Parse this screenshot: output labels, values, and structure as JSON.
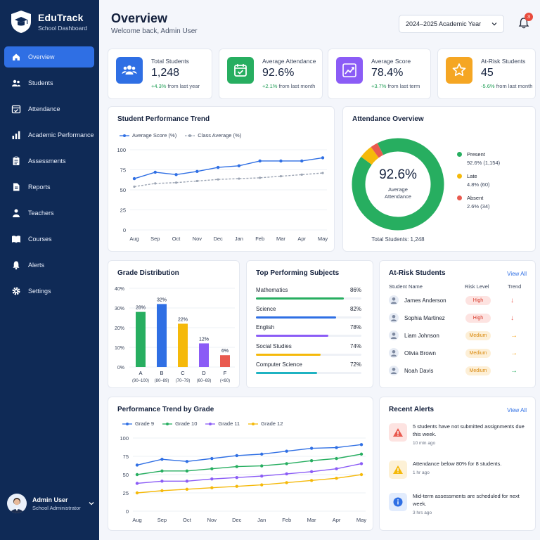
{
  "brand": {
    "title": "EduTrack",
    "subtitle": "School Dashboard"
  },
  "nav": [
    {
      "label": "Overview",
      "icon": "home-icon"
    },
    {
      "label": "Students",
      "icon": "users-icon"
    },
    {
      "label": "Attendance",
      "icon": "calendar-check-icon"
    },
    {
      "label": "Academic Performance",
      "icon": "bar-chart-icon"
    },
    {
      "label": "Assessments",
      "icon": "clipboard-icon"
    },
    {
      "label": "Reports",
      "icon": "document-icon"
    },
    {
      "label": "Teachers",
      "icon": "teacher-icon"
    },
    {
      "label": "Courses",
      "icon": "book-icon"
    },
    {
      "label": "Alerts",
      "icon": "bell-icon"
    },
    {
      "label": "Settings",
      "icon": "gear-icon"
    }
  ],
  "user": {
    "name": "Admin User",
    "role": "School Administrator"
  },
  "header": {
    "title": "Overview",
    "subtitle": "Welcome back, Admin User",
    "year": "2024–2025 Academic Year",
    "notifications": "3"
  },
  "kpis": [
    {
      "label": "Total Students",
      "value": "1,248",
      "change": "+4.3%",
      "period": "from last year",
      "color": "#2f6fe4"
    },
    {
      "label": "Average Attendance",
      "value": "92.6%",
      "change": "+2.1%",
      "period": "from last month",
      "color": "#27ae60"
    },
    {
      "label": "Average Score",
      "value": "78.4%",
      "change": "+3.7%",
      "period": "from last term",
      "color": "#8b5cf6"
    },
    {
      "label": "At-Risk Students",
      "value": "45",
      "change": "-5.6%",
      "period": "from last month",
      "color": "#f5a623"
    }
  ],
  "performance_trend": {
    "title": "Student Performance Trend",
    "chart_data": {
      "type": "line",
      "x": [
        "Aug",
        "Sep",
        "Oct",
        "Nov",
        "Dec",
        "Jan",
        "Feb",
        "Mar",
        "Apr",
        "May"
      ],
      "ylim": [
        0,
        100
      ],
      "yticks": [
        "0",
        "25",
        "50",
        "75",
        "100"
      ],
      "series": [
        {
          "name": "Average Score (%)",
          "values": [
            64,
            72,
            69,
            73,
            78,
            80,
            86,
            86,
            86,
            90
          ],
          "color": "#2f6fe4"
        },
        {
          "name": "Class Average (%)",
          "values": [
            54,
            58,
            59,
            61,
            63,
            64,
            65,
            67,
            69,
            71
          ],
          "color": "#9aa3b2"
        }
      ]
    }
  },
  "attendance": {
    "title": "Attendance Overview",
    "center_value": "92.6%",
    "center_label_1": "Average",
    "center_label_2": "Attendance",
    "total": "Total Students: 1,248",
    "chart_data": {
      "type": "pie",
      "slices": [
        {
          "name": "Present",
          "value": 92.6,
          "detail": "92.6% (1,154)",
          "color": "#27ae60"
        },
        {
          "name": "Late",
          "value": 4.8,
          "detail": "4.8% (60)",
          "color": "#f5b90a"
        },
        {
          "name": "Absent",
          "value": 2.6,
          "detail": "2.6% (34)",
          "color": "#e95a4f"
        }
      ]
    }
  },
  "grades": {
    "title": "Grade Distribution",
    "chart_data": {
      "type": "bar",
      "categories": [
        "A",
        "B",
        "C",
        "D",
        "F"
      ],
      "ranges": [
        "(90–100)",
        "(80–89)",
        "(70–79)",
        "(60–69)",
        "(<60)"
      ],
      "values": [
        28,
        32,
        22,
        12,
        6
      ],
      "labels": [
        "28%",
        "32%",
        "22%",
        "12%",
        "6%"
      ],
      "colors": [
        "#27ae60",
        "#2f6fe4",
        "#f5b90a",
        "#8b5cf6",
        "#e95a4f"
      ],
      "ylim": [
        0,
        40
      ],
      "yticks": [
        "0%",
        "10%",
        "20%",
        "30%",
        "40%"
      ]
    }
  },
  "subjects": {
    "title": "Top Performing Subjects",
    "items": [
      {
        "name": "Mathematics",
        "value": "86%",
        "pct": 86,
        "color": "#27ae60"
      },
      {
        "name": "Science",
        "value": "82%",
        "pct": 82,
        "color": "#2f6fe4"
      },
      {
        "name": "English",
        "value": "78%",
        "pct": 78,
        "color": "#8b5cf6"
      },
      {
        "name": "Social Studies",
        "value": "74%",
        "pct": 74,
        "color": "#f5b90a"
      },
      {
        "name": "Computer Science",
        "value": "72%",
        "pct": 72,
        "color": "#1fb3c2"
      }
    ]
  },
  "at_risk": {
    "title": "At-Risk Students",
    "view_all": "View All",
    "headers": {
      "student": "Student Name",
      "risk": "Risk Level",
      "trend": "Trend"
    },
    "rows": [
      {
        "name": "James Anderson",
        "risk": "High",
        "trend": "↓",
        "trend_color": "#e95a4f"
      },
      {
        "name": "Sophia Martinez",
        "risk": "High",
        "trend": "↓",
        "trend_color": "#e95a4f"
      },
      {
        "name": "Liam Johnson",
        "risk": "Medium",
        "trend": "→",
        "trend_color": "#f5a623"
      },
      {
        "name": "Olivia Brown",
        "risk": "Medium",
        "trend": "→",
        "trend_color": "#f5a623"
      },
      {
        "name": "Noah Davis",
        "risk": "Medium",
        "trend": "→",
        "trend_color": "#27ae60"
      }
    ]
  },
  "grade_trend": {
    "title": "Performance Trend by Grade",
    "chart_data": {
      "type": "line",
      "x": [
        "Aug",
        "Sep",
        "Oct",
        "Nov",
        "Dec",
        "Jan",
        "Feb",
        "Mar",
        "Apr",
        "May"
      ],
      "ylim": [
        0,
        100
      ],
      "yticks": [
        "0",
        "25",
        "50",
        "75",
        "100"
      ],
      "series": [
        {
          "name": "Grade 9",
          "values": [
            63,
            71,
            68,
            72,
            76,
            78,
            82,
            86,
            87,
            91
          ],
          "color": "#2f6fe4"
        },
        {
          "name": "Grade 10",
          "values": [
            50,
            55,
            55,
            58,
            61,
            62,
            65,
            69,
            72,
            78
          ],
          "color": "#27ae60"
        },
        {
          "name": "Grade 11",
          "values": [
            38,
            41,
            41,
            44,
            46,
            48,
            51,
            54,
            58,
            65
          ],
          "color": "#8b5cf6"
        },
        {
          "name": "Grade 12",
          "values": [
            25,
            28,
            30,
            32,
            34,
            36,
            39,
            42,
            45,
            50
          ],
          "color": "#f5b90a"
        }
      ]
    }
  },
  "alerts": {
    "title": "Recent Alerts",
    "view_all": "View All",
    "items": [
      {
        "text": "5 students have not submitted assignments due this week.",
        "time": "10 min ago",
        "icon": "warning-icon",
        "color": "#e95a4f",
        "bg": "#fde3e1"
      },
      {
        "text": "Attendance below 80% for 8 students.",
        "time": "1 hr ago",
        "icon": "warning-icon",
        "color": "#f5b90a",
        "bg": "#fdf1d6"
      },
      {
        "text": "Mid-term assessments are scheduled for next week.",
        "time": "3 hrs ago",
        "icon": "info-icon",
        "color": "#2f6fe4",
        "bg": "#e2ecfd"
      }
    ]
  }
}
